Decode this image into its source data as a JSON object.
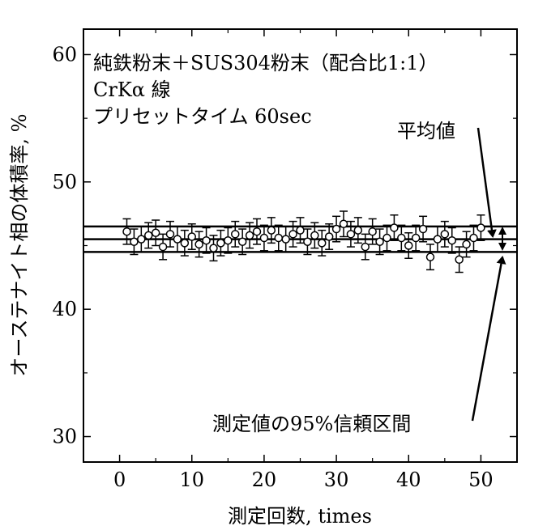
{
  "chart_data": {
    "type": "scatter",
    "title": "",
    "annotation_lines": [
      "純鉄粉末＋SUS304粉末（配合比1:1）",
      "CrKα 線",
      "プリセットタイム 60sec"
    ],
    "xlabel": "測定回数, times",
    "ylabel": "オーステナイト相の体積率, %",
    "xlim": [
      -5,
      55
    ],
    "ylim": [
      28,
      62
    ],
    "x_ticks": [
      0,
      10,
      20,
      30,
      40,
      50
    ],
    "y_ticks": [
      30,
      40,
      50,
      60
    ],
    "grid": false,
    "series": [
      {
        "x": [
          1,
          2,
          3,
          4,
          5,
          6,
          7,
          8,
          9,
          10,
          11,
          12,
          13,
          14,
          15,
          16,
          17,
          18,
          19,
          20,
          21,
          22,
          23,
          24,
          25,
          26,
          27,
          28,
          29,
          30,
          31,
          32,
          33,
          34,
          35,
          36,
          37,
          38,
          39,
          40,
          41,
          42,
          43,
          44,
          45,
          46,
          47,
          48,
          49,
          50
        ],
        "y": [
          46.1,
          45.3,
          45.5,
          45.8,
          46.0,
          44.9,
          45.9,
          45.5,
          45.2,
          45.7,
          45.1,
          45.4,
          44.8,
          45.2,
          45.4,
          45.9,
          45.3,
          45.8,
          46.1,
          45.6,
          46.2,
          45.6,
          45.5,
          45.9,
          46.2,
          45.3,
          45.8,
          45.2,
          45.7,
          46.3,
          46.7,
          45.9,
          46.2,
          44.9,
          46.1,
          45.3,
          45.6,
          46.4,
          45.6,
          45.0,
          45.6,
          46.3,
          44.1,
          45.5,
          45.9,
          45.4,
          43.9,
          45.1,
          45.6,
          46.4
        ],
        "error": [
          1.0,
          1.0,
          1.0,
          1.0,
          1.0,
          1.0,
          1.0,
          1.0,
          1.0,
          1.0,
          1.0,
          1.0,
          1.0,
          1.0,
          1.0,
          1.0,
          1.0,
          1.0,
          1.0,
          1.0,
          1.0,
          1.0,
          1.0,
          1.0,
          1.0,
          1.0,
          1.0,
          1.0,
          1.0,
          1.0,
          1.0,
          1.0,
          1.0,
          1.0,
          1.0,
          1.0,
          1.0,
          1.0,
          1.0,
          1.0,
          1.0,
          1.0,
          1.0,
          1.0,
          1.0,
          1.0,
          1.0,
          1.0,
          1.0,
          1.0
        ]
      }
    ],
    "reference_lines": [
      {
        "y": 45.5,
        "label": "平均値"
      },
      {
        "y": 46.5,
        "label": "測定値の95%信頼区間"
      },
      {
        "y": 44.5,
        "label": "測定値の95%信頼区間"
      }
    ],
    "labels": {
      "mean": "平均値",
      "ci": "測定値の95%信頼区間"
    }
  }
}
